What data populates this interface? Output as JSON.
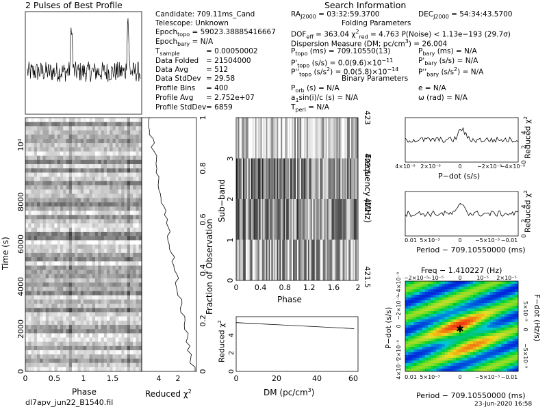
{
  "title_pulses": "2 Pulses of Best Profile",
  "title_search": "Search Information",
  "filename": "dl7apv_jun22_B1540.fil",
  "timestamp": "23-Jun-2020 16:58",
  "info": {
    "candidate": "Candidate:  709.11ms_Cand",
    "telescope": "Telescope:   Unknown",
    "epoch_topo": "Epoch",
    "epoch_topo_sub": "topo",
    "epoch_topo_val": " = 59023.38885416667",
    "epoch_bary": "Epoch",
    "epoch_bary_sub": "bary",
    "epoch_bary_val": " = N/A",
    "tsample": "T",
    "tsample_sub": "sample",
    "tsample_val": "= 0.00050002",
    "data_folded": "Data Folded",
    "data_folded_val": "= 21504000",
    "data_avg": "Data Avg",
    "data_avg_val": "= 512",
    "data_stddev": "Data StdDev",
    "data_stddev_val": "= 29.58",
    "profile_bins": "Profile Bins",
    "profile_bins_val": "= 400",
    "profile_avg": "Profile Avg",
    "profile_avg_val": "= 2.752e+07",
    "profile_stddev": "Profile StdDev",
    "profile_stddev_val": "= 6859",
    "ra": "RA",
    "ra_sub": "J2000",
    "ra_val": " = 03:32:59.3700",
    "dec": "DEC",
    "dec_sub": "J2000",
    "dec_val": " = 54:34:43.5700",
    "folding_params": "Folding Parameters",
    "dof": "DOF",
    "dof_sub": "eff",
    "dof_val": " = 363.04  χ",
    "chi_sup": "2",
    "chi_sub": "red",
    "chi_val": " = 4.763  P(Noise) < 1.13e−193  (29.7σ)",
    "dm": "Dispersion Measure (DM; pc/cm",
    "dm_sup": "3",
    "dm_val": ") = 26.004",
    "ptopo": "P",
    "ptopo_sub": "topo",
    "ptopo_val": " (ms)  = 709.10550(13)",
    "pbary": "P",
    "pbary_sub": "bary",
    "pbary_val": " (ms) = N/A",
    "pdtopo": "P'",
    "pdtopo_sub": "topo",
    "pdtopo_val": " (s/s) = 0.0(9.6)×10",
    "pdtopo_exp": "−11",
    "pdbary": "P'",
    "pdbary_sub": "bary",
    "pdbary_val": " (s/s) = N/A",
    "pddtopo": "P''",
    "pddtopo_sub": "topo",
    "pddtopo_val": " (s/s",
    "pddtopo_sup": "2",
    "pddtopo_val2": ") = 0.0(5.8)×10",
    "pddtopo_exp": "−14",
    "pddbary": "P''",
    "pddbary_sub": "bary",
    "pddbary_val": " (s/s",
    "pddbary_sup": "2",
    "pddbary_val2": ") = N/A",
    "binary_params": "Binary Parameters",
    "porb": "P",
    "porb_sub": "orb",
    "porb_val": " (s) = N/A",
    "e_val": "e = N/A",
    "asini": "a",
    "asini_sub": "1",
    "asini_val": "sin(i)/c (s) = N/A",
    "omega_val": "ω (rad) = N/A",
    "tperi": "T",
    "tperi_sub": "peri",
    "tperi_val": " = N/A"
  },
  "labels": {
    "phase": "Phase",
    "reduced_chi2": "Reduced χ",
    "chi2_sup": "2",
    "time": "Time (s)",
    "fraction": "Fraction of Observation",
    "subband": "Sub−band",
    "frequency": "Frequency (MHz)",
    "dm_axis": "DM (pc/cm",
    "dm_axis_sup": "3",
    "dm_axis_end": ")",
    "pdot": "P−dot (s/s)",
    "period": "Period − 709.10550000 (ms)",
    "freq_title": "Freq − 1.410227 (Hz)",
    "fdot": "F−dot (Hz/s)",
    "pdot_side": "P−dot (s/s)"
  },
  "ticks": {
    "phase_main": [
      "0",
      "0.5",
      "1",
      "1.5"
    ],
    "time": [
      "0",
      "2000",
      "4000",
      "6000",
      "8000",
      "10⁴"
    ],
    "chi_small": [
      "4",
      "2"
    ],
    "fraction": [
      "0",
      "0.2",
      "0.4",
      "0.6",
      "0.8",
      "1"
    ],
    "subband": [
      "0",
      "1",
      "2",
      "3"
    ],
    "phase_sub": [
      "0",
      "0.4",
      "0.8",
      "1.2",
      "1.6",
      "2"
    ],
    "freq": [
      "421.5",
      "422",
      "422.5",
      "423"
    ],
    "dm": [
      "0",
      "20",
      "40",
      "60"
    ],
    "chi_dm": [
      "0",
      "2",
      "4"
    ],
    "pdot_x": [
      "4×10⁻⁹",
      "2×10⁻⁹",
      "0",
      "−2×10⁻⁹",
      "−4×10⁻⁹"
    ],
    "pdot_y": [
      "0",
      "2",
      "4"
    ],
    "period_x": [
      "0.01",
      "5×10⁻³",
      "0",
      "−5×10⁻³",
      "−0.01"
    ],
    "per_y": [
      "0",
      "2",
      "4"
    ],
    "fd_top": [
      "−2×10⁻⁵",
      "−10⁻⁵",
      "0",
      "10⁻⁵",
      "2×10⁻⁵"
    ],
    "pdot_left": [
      "4×10⁻⁹",
      "2×10⁻⁹",
      "0",
      "−2×10⁻⁹",
      "−4×10⁻⁹"
    ],
    "fdot_right": [
      "5×10⁻⁹",
      "0",
      "−5×10⁻⁹"
    ]
  },
  "chart_data": [
    {
      "type": "line",
      "name": "profile",
      "x": [
        0,
        0.2,
        0.4,
        0.6,
        0.8,
        1.0,
        1.2,
        1.4,
        1.6,
        1.8,
        2.0
      ],
      "values": [
        0.1,
        0.0,
        0.2,
        0.1,
        1.0,
        0.1,
        0.0,
        0.2,
        0.1,
        1.0,
        0.1
      ]
    },
    {
      "type": "line",
      "name": "chi_vs_time",
      "ylabel": "Time (s)",
      "values": [
        0.2,
        4.8,
        4.6,
        4.7,
        4.6,
        4.4,
        4.5,
        4.0,
        4.2,
        3.9,
        4.1
      ]
    },
    {
      "type": "line",
      "name": "chi_vs_dm",
      "x": [
        0,
        10,
        20,
        30,
        40,
        50,
        60
      ],
      "values": [
        4.9,
        4.8,
        4.7,
        4.6,
        4.5,
        4.4,
        4.3
      ],
      "ylim": [
        0,
        5.5
      ]
    },
    {
      "type": "line",
      "name": "chi_vs_pdot",
      "values": [
        3.0,
        3.3,
        2.8,
        3.6,
        3.2,
        4.6,
        3.4,
        3.0,
        3.2,
        3.5,
        2.9
      ]
    },
    {
      "type": "line",
      "name": "chi_vs_period",
      "values": [
        2.5,
        2.9,
        3.3,
        2.6,
        3.1,
        4.4,
        3.5,
        3.2,
        3.0,
        3.6,
        3.9
      ]
    }
  ]
}
